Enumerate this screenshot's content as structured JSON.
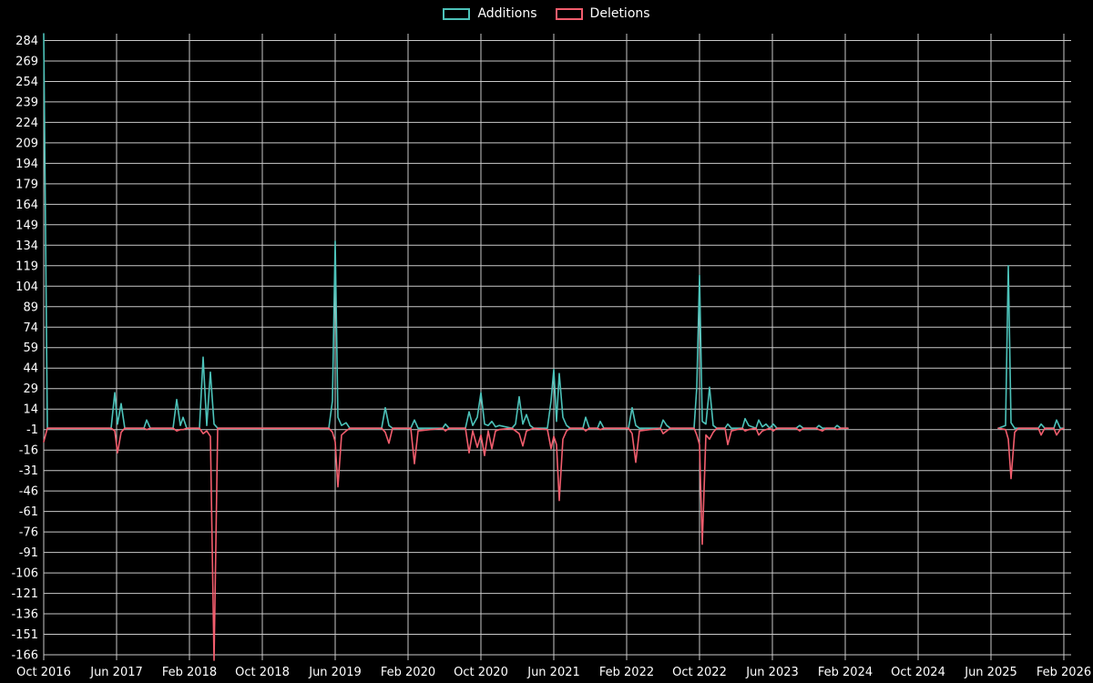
{
  "chart_data": {
    "type": "line",
    "title": "",
    "xlabel": "",
    "ylabel": "",
    "background_color": "#000000",
    "grid": true,
    "grid_color": "#c9c9c9",
    "text_color": "#ffffff",
    "legend_position": "top-center",
    "x_unit": "months since Oct 2016 (weekly additions/deletions)",
    "xlim": [
      0,
      112.8
    ],
    "ylim": [
      -170,
      289
    ],
    "yticks": [
      284,
      269,
      254,
      239,
      224,
      209,
      194,
      179,
      164,
      149,
      134,
      119,
      104,
      89,
      74,
      59,
      44,
      29,
      14,
      -1,
      -16,
      -31,
      -46,
      -61,
      -76,
      -91,
      -106,
      -121,
      -136,
      -151,
      -166
    ],
    "xticks": [
      {
        "m": 0,
        "label": "Oct 2016"
      },
      {
        "m": 8,
        "label": "Jun 2017"
      },
      {
        "m": 16,
        "label": "Feb 2018"
      },
      {
        "m": 24,
        "label": "Oct 2018"
      },
      {
        "m": 32,
        "label": "Jun 2019"
      },
      {
        "m": 40,
        "label": "Feb 2020"
      },
      {
        "m": 48,
        "label": "Oct 2020"
      },
      {
        "m": 56,
        "label": "Jun 2021"
      },
      {
        "m": 64,
        "label": "Feb 2022"
      },
      {
        "m": 72,
        "label": "Oct 2022"
      },
      {
        "m": 80,
        "label": "Jun 2023"
      },
      {
        "m": 88,
        "label": "Feb 2024"
      },
      {
        "m": 96,
        "label": "Oct 2024"
      },
      {
        "m": 104,
        "label": "Jun 2025"
      },
      {
        "m": 112,
        "label": "Feb 2026"
      }
    ],
    "series": [
      {
        "name": "Additions",
        "color": "#4cc2b9"
      },
      {
        "name": "Deletions",
        "color": "#f25d6d"
      }
    ],
    "points_format": "[x_months, additions, deletions], null = gap in data",
    "points": [
      [
        0.0,
        290,
        -10
      ],
      [
        0.4,
        0,
        0
      ],
      [
        7.4,
        0,
        0
      ],
      [
        7.8,
        26,
        -2
      ],
      [
        8.1,
        3,
        -18
      ],
      [
        8.5,
        18,
        -3
      ],
      [
        8.9,
        0,
        0
      ],
      [
        11.0,
        0,
        0
      ],
      [
        11.3,
        6,
        -1
      ],
      [
        11.7,
        0,
        0
      ],
      [
        14.2,
        0,
        0
      ],
      [
        14.6,
        21,
        -2
      ],
      [
        15.0,
        2,
        -1
      ],
      [
        15.3,
        8,
        -1
      ],
      [
        15.7,
        0,
        0
      ],
      [
        17.1,
        0,
        0
      ],
      [
        17.5,
        52,
        -4
      ],
      [
        17.9,
        2,
        -2
      ],
      [
        18.3,
        41,
        -6
      ],
      [
        18.7,
        3,
        -170
      ],
      [
        19.1,
        0,
        0
      ],
      [
        31.3,
        0,
        0
      ],
      [
        31.7,
        20,
        -3
      ],
      [
        32.0,
        137,
        -10
      ],
      [
        32.3,
        8,
        -43
      ],
      [
        32.7,
        2,
        -5
      ],
      [
        33.2,
        4,
        -2
      ],
      [
        33.6,
        0,
        0
      ],
      [
        37.1,
        0,
        0
      ],
      [
        37.5,
        15,
        -3
      ],
      [
        37.9,
        2,
        -11
      ],
      [
        38.3,
        0,
        0
      ],
      [
        40.3,
        0,
        0
      ],
      [
        40.7,
        6,
        -26
      ],
      [
        41.1,
        0,
        -2
      ],
      [
        43.8,
        0,
        0
      ],
      [
        44.1,
        3,
        -2
      ],
      [
        44.5,
        0,
        0
      ],
      [
        46.3,
        0,
        0
      ],
      [
        46.7,
        12,
        -18
      ],
      [
        47.1,
        2,
        -2
      ],
      [
        47.6,
        8,
        -14
      ],
      [
        48.0,
        26,
        -5
      ],
      [
        48.4,
        3,
        -20
      ],
      [
        48.8,
        2,
        -2
      ],
      [
        49.2,
        5,
        -15
      ],
      [
        49.6,
        1,
        -2
      ],
      [
        50.0,
        2,
        -1
      ],
      [
        51.4,
        0,
        0
      ],
      [
        51.8,
        3,
        -2
      ],
      [
        52.2,
        23,
        -4
      ],
      [
        52.6,
        3,
        -13
      ],
      [
        53.0,
        10,
        -2
      ],
      [
        53.4,
        2,
        -1
      ],
      [
        53.8,
        0,
        0
      ],
      [
        55.3,
        0,
        -1
      ],
      [
        55.7,
        20,
        -15
      ],
      [
        56.0,
        43,
        -6
      ],
      [
        56.3,
        5,
        -12
      ],
      [
        56.6,
        40,
        -53
      ],
      [
        57.0,
        8,
        -8
      ],
      [
        57.4,
        2,
        -2
      ],
      [
        57.8,
        0,
        0
      ],
      [
        59.2,
        0,
        0
      ],
      [
        59.5,
        8,
        -2
      ],
      [
        59.9,
        0,
        0
      ],
      [
        60.8,
        0,
        0
      ],
      [
        61.1,
        5,
        -1
      ],
      [
        61.5,
        0,
        0
      ],
      [
        64.2,
        0,
        0
      ],
      [
        64.6,
        15,
        -4
      ],
      [
        65.0,
        2,
        -25
      ],
      [
        65.4,
        0,
        -2
      ],
      [
        67.7,
        0,
        0
      ],
      [
        68.0,
        6,
        -4
      ],
      [
        68.4,
        2,
        -2
      ],
      [
        68.8,
        0,
        0
      ],
      [
        71.4,
        0,
        0
      ],
      [
        71.7,
        30,
        -5
      ],
      [
        72.0,
        112,
        -12
      ],
      [
        72.3,
        5,
        -85
      ],
      [
        72.7,
        3,
        -5
      ],
      [
        73.1,
        30,
        -8
      ],
      [
        73.5,
        2,
        -3
      ],
      [
        73.9,
        0,
        0
      ],
      [
        74.8,
        0,
        0
      ],
      [
        75.1,
        3,
        -12
      ],
      [
        75.5,
        0,
        -2
      ],
      [
        76.7,
        0,
        0
      ],
      [
        77.0,
        7,
        -2
      ],
      [
        77.4,
        2,
        -1
      ],
      [
        78.2,
        0,
        0
      ],
      [
        78.5,
        6,
        -5
      ],
      [
        78.9,
        1,
        -2
      ],
      [
        79.3,
        3,
        -1
      ],
      [
        79.7,
        0,
        0
      ],
      [
        80.1,
        3,
        -2
      ],
      [
        80.5,
        0,
        0
      ],
      [
        82.6,
        0,
        0
      ],
      [
        83.0,
        2,
        -2
      ],
      [
        83.4,
        0,
        0
      ],
      [
        84.8,
        0,
        0
      ],
      [
        85.1,
        2,
        -1
      ],
      [
        85.5,
        0,
        -2
      ],
      [
        85.9,
        0,
        0
      ],
      [
        86.8,
        0,
        0
      ],
      [
        87.1,
        2,
        -1
      ],
      [
        87.5,
        0,
        0
      ],
      [
        88.3,
        0,
        0
      ],
      null,
      [
        104.8,
        0,
        0
      ],
      [
        105.6,
        2,
        -1
      ],
      [
        105.9,
        119,
        -8
      ],
      [
        106.2,
        4,
        -37
      ],
      [
        106.6,
        0,
        -3
      ],
      [
        107.0,
        0,
        0
      ],
      [
        109.2,
        0,
        0
      ],
      [
        109.5,
        3,
        -5
      ],
      [
        109.9,
        0,
        0
      ],
      [
        110.9,
        0,
        0
      ],
      [
        111.2,
        6,
        -5
      ],
      [
        111.6,
        0,
        -1
      ],
      [
        112.0,
        0,
        0
      ]
    ]
  }
}
